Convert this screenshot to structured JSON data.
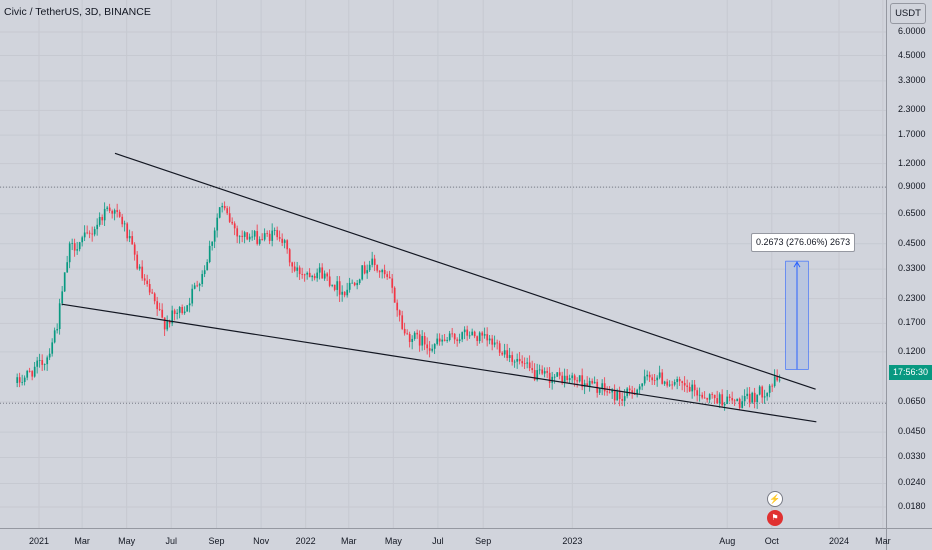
{
  "header": {
    "title": "Civic / TetherUS, 3D, BINANCE",
    "currency_button": "USDT"
  },
  "price_tag": {
    "value": "17:56:30",
    "color": "#089981"
  },
  "measure": {
    "label": "0.2673 (276.06%) 2673"
  },
  "events": {
    "lightning_icon": "⚡",
    "flag_icon": "flag-icon"
  },
  "colors": {
    "up": "#089981",
    "down": "#f23645",
    "background": "#d1d4dc",
    "grid": "#c6c9d1",
    "trendline": "#131722",
    "measure_fill": "#b2c1e0",
    "measure_border": "#2962ff"
  },
  "chart_data": {
    "type": "candlestick",
    "scale": "log",
    "y_ticks": [
      "6.0000",
      "4.5000",
      "3.3000",
      "2.3000",
      "1.7000",
      "1.2000",
      "0.9000",
      "0.6500",
      "0.4500",
      "0.3300",
      "0.2300",
      "0.1700",
      "0.1200",
      "0.0650",
      "0.0450",
      "0.0330",
      "0.0240",
      "0.0180"
    ],
    "x_ticks": [
      "2021",
      "Mar",
      "May",
      "Jul",
      "Sep",
      "Nov",
      "2022",
      "Mar",
      "May",
      "Jul",
      "Sep",
      "2023",
      "Aug",
      "Oct",
      "2024",
      "Mar"
    ],
    "x_tick_dates": [
      "2021-01-01",
      "2021-03-01",
      "2021-05-01",
      "2021-07-01",
      "2021-09-01",
      "2021-11-01",
      "2022-01-01",
      "2022-03-01",
      "2022-05-01",
      "2022-07-01",
      "2022-09-01",
      "2023-01-01",
      "2023-08-01",
      "2023-10-01",
      "2024-01-01",
      "2024-03-01"
    ],
    "close_series": [
      {
        "date": "2020-12-01",
        "close": 0.082
      },
      {
        "date": "2021-01-10",
        "close": 0.11
      },
      {
        "date": "2021-01-25",
        "close": 0.17
      },
      {
        "date": "2021-02-10",
        "close": 0.42
      },
      {
        "date": "2021-03-10",
        "close": 0.5
      },
      {
        "date": "2021-04-05",
        "close": 0.72
      },
      {
        "date": "2021-04-25",
        "close": 0.58
      },
      {
        "date": "2021-05-20",
        "close": 0.3
      },
      {
        "date": "2021-06-20",
        "close": 0.17
      },
      {
        "date": "2021-07-20",
        "close": 0.21
      },
      {
        "date": "2021-08-15",
        "close": 0.34
      },
      {
        "date": "2021-09-05",
        "close": 0.72
      },
      {
        "date": "2021-10-01",
        "close": 0.5
      },
      {
        "date": "2021-11-01",
        "close": 0.48
      },
      {
        "date": "2021-11-25",
        "close": 0.52
      },
      {
        "date": "2021-12-15",
        "close": 0.32
      },
      {
        "date": "2022-01-20",
        "close": 0.32
      },
      {
        "date": "2022-02-20",
        "close": 0.25
      },
      {
        "date": "2022-03-30",
        "close": 0.36
      },
      {
        "date": "2022-04-25",
        "close": 0.28
      },
      {
        "date": "2022-05-15",
        "close": 0.15
      },
      {
        "date": "2022-06-20",
        "close": 0.13
      },
      {
        "date": "2022-08-10",
        "close": 0.15
      },
      {
        "date": "2022-09-20",
        "close": 0.13
      },
      {
        "date": "2022-11-10",
        "close": 0.09
      },
      {
        "date": "2023-01-10",
        "close": 0.085
      },
      {
        "date": "2023-03-10",
        "close": 0.068
      },
      {
        "date": "2023-04-20",
        "close": 0.09
      },
      {
        "date": "2023-07-01",
        "close": 0.07
      },
      {
        "date": "2023-08-20",
        "close": 0.064
      },
      {
        "date": "2023-09-20",
        "close": 0.075
      },
      {
        "date": "2023-10-12",
        "close": 0.088
      }
    ],
    "reference_levels": [
      0.9,
      0.064
    ],
    "trendlines": [
      {
        "from": {
          "date": "2021-04-15",
          "price": 1.36
        },
        "to": {
          "date": "2023-11-30",
          "price": 0.076
        }
      },
      {
        "from": {
          "date": "2021-02-01",
          "price": 0.215
        },
        "to": {
          "date": "2023-12-01",
          "price": 0.051
        }
      }
    ],
    "measure_range": {
      "from_date": "2023-10-20",
      "to_date": "2023-11-20",
      "from_price": 0.0968,
      "to_price": 0.3641
    }
  }
}
